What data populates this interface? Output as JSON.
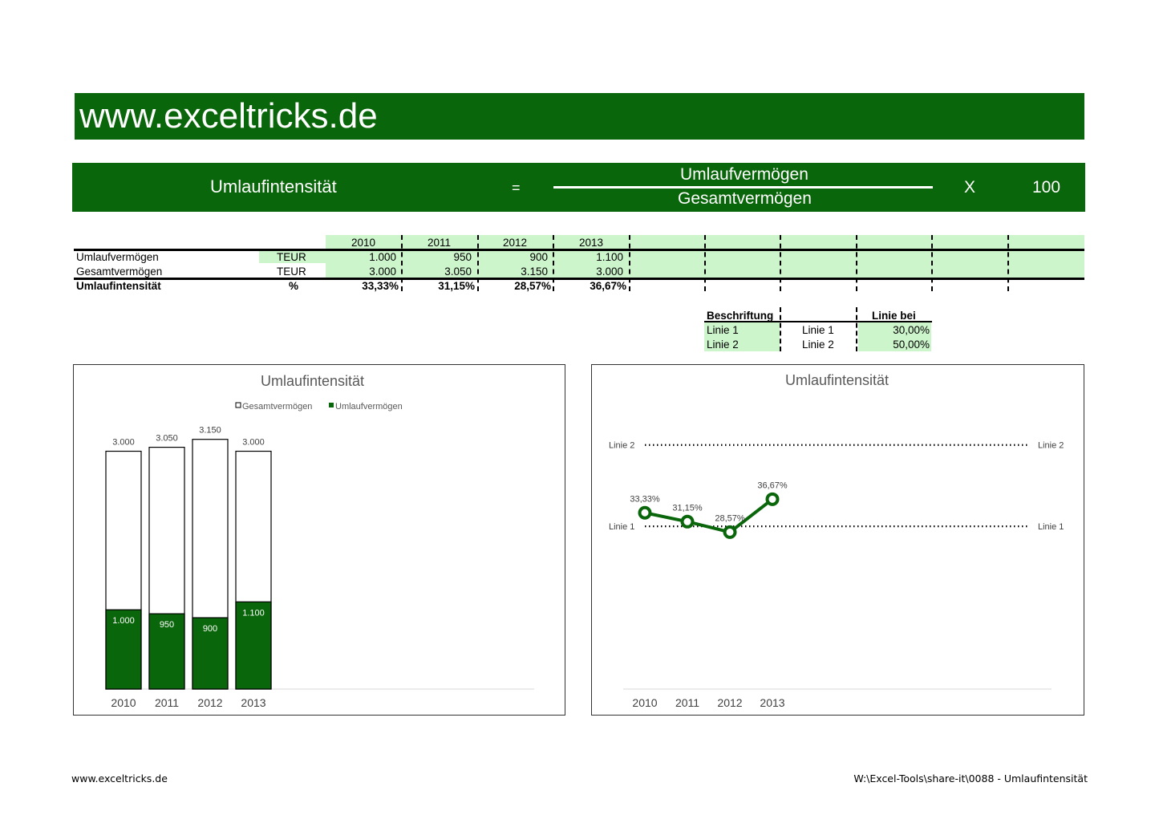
{
  "banner": {
    "title": "www.exceltricks.de"
  },
  "formula": {
    "name": "Umlaufintensität",
    "equals": "=",
    "numerator": "Umlaufvermögen",
    "denominator": "Gesamtvermögen",
    "times": "X",
    "factor": "100"
  },
  "table": {
    "years": [
      "2010",
      "2011",
      "2012",
      "2013"
    ],
    "rows": [
      {
        "label": "Umlaufvermögen",
        "unit": "TEUR",
        "values": [
          "1.000",
          "950",
          "900",
          "1.100"
        ]
      },
      {
        "label": "Gesamtvermögen",
        "unit": "TEUR",
        "values": [
          "3.000",
          "3.050",
          "3.150",
          "3.000"
        ]
      },
      {
        "label": "Umlaufintensität",
        "unit": "%",
        "values": [
          "33,33%",
          "31,15%",
          "28,57%",
          "36,67%"
        ]
      }
    ]
  },
  "lines_table": {
    "header_label": "Beschriftung",
    "header_value": "Linie bei",
    "rows": [
      {
        "name": "Linie 1",
        "label": "Linie 1",
        "value": "30,00%"
      },
      {
        "name": "Linie 2",
        "label": "Linie 2",
        "value": "50,00%"
      }
    ]
  },
  "chart_data": [
    {
      "type": "bar",
      "title": "Umlaufintensität",
      "categories": [
        "2010",
        "2011",
        "2012",
        "2013"
      ],
      "series": [
        {
          "name": "Gesamtvermögen",
          "values": [
            3000,
            3050,
            3150,
            3000
          ],
          "labels": [
            "3.000",
            "3.050",
            "3.150",
            "3.000"
          ],
          "color": "#ffffff"
        },
        {
          "name": "Umlaufvermögen",
          "values": [
            1000,
            950,
            900,
            1100
          ],
          "labels": [
            "1.000",
            "950",
            "900",
            "1.100"
          ],
          "color": "#0a660a"
        }
      ],
      "legend": "top",
      "ylim": [
        0,
        3400
      ],
      "grid": false
    },
    {
      "type": "line",
      "title": "Umlaufintensität",
      "categories": [
        "2010",
        "2011",
        "2012",
        "2013"
      ],
      "series": [
        {
          "name": "Umlaufintensität",
          "values": [
            33.33,
            31.15,
            28.57,
            36.67
          ],
          "labels": [
            "33,33%",
            "31,15%",
            "28,57%",
            "36,67%"
          ],
          "color": "#0a660a"
        }
      ],
      "reference_lines": [
        {
          "label": "Linie 1",
          "value": 30
        },
        {
          "label": "Linie 2",
          "value": 50
        }
      ],
      "ylim": [
        -10,
        60
      ],
      "grid": false
    }
  ],
  "footer": {
    "left": "www.exceltricks.de",
    "right": "W:\\Excel-Tools\\share-it\\0088 - Umlaufintensität"
  }
}
